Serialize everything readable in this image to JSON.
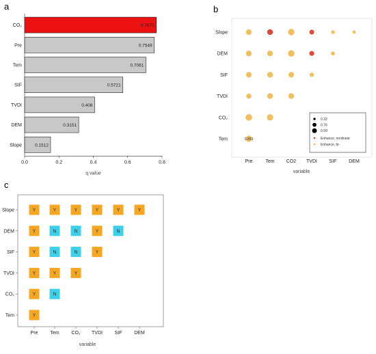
{
  "panels": {
    "a": "a",
    "b": "b",
    "c": "c"
  },
  "chart_data": [
    {
      "panel": "a",
      "type": "bar",
      "orientation": "horizontal",
      "categories": [
        "CO₂",
        "Pre",
        "Tem",
        "SIF",
        "TVDI",
        "DEM",
        "Slope"
      ],
      "values": [
        0.7671,
        0.7549,
        0.7061,
        0.5721,
        0.408,
        0.3151,
        0.1512
      ],
      "value_labels": [
        "0.7671",
        "0.7549",
        "0.7061",
        "0.5721",
        "0.408",
        "0.3151",
        "0.1512"
      ],
      "bar_colors": [
        "#ee1111",
        "#c8c8c8",
        "#c8c8c8",
        "#c8c8c8",
        "#c8c8c8",
        "#c8c8c8",
        "#c8c8c8"
      ],
      "xlabel": "q value",
      "xlim": [
        0,
        0.8
      ],
      "xticks": [
        "0.0",
        "0.2",
        "0.4",
        "0.6",
        "0.8"
      ]
    },
    {
      "panel": "b",
      "type": "scatter",
      "x_categories": [
        "Pre",
        "Tem",
        "CO2",
        "TVDI",
        "SIF",
        "DEM"
      ],
      "y_categories": [
        "Tem",
        "CO₂",
        "TVDI",
        "SIF",
        "DEM",
        "Slope"
      ],
      "xlabel": "variable",
      "points": [
        {
          "x": "Pre",
          "y": "Slope",
          "type": "bi",
          "size": 0.78
        },
        {
          "x": "Tem",
          "y": "Slope",
          "type": "nonlinear",
          "size": 0.78
        },
        {
          "x": "CO2",
          "y": "Slope",
          "type": "bi",
          "size": 0.92
        },
        {
          "x": "TVDI",
          "y": "Slope",
          "type": "nonlinear",
          "size": 0.6
        },
        {
          "x": "SIF",
          "y": "Slope",
          "type": "bi",
          "size": 0.4
        },
        {
          "x": "DEM",
          "y": "Slope",
          "type": "bi",
          "size": 0.32
        },
        {
          "x": "Pre",
          "y": "DEM",
          "type": "bi",
          "size": 0.78
        },
        {
          "x": "Tem",
          "y": "DEM",
          "type": "bi",
          "size": 0.76
        },
        {
          "x": "CO2",
          "y": "DEM",
          "type": "bi",
          "size": 0.92
        },
        {
          "x": "TVDI",
          "y": "DEM",
          "type": "nonlinear",
          "size": 0.62
        },
        {
          "x": "SIF",
          "y": "DEM",
          "type": "bi",
          "size": 0.45
        },
        {
          "x": "Pre",
          "y": "SIF",
          "type": "bi",
          "size": 0.76
        },
        {
          "x": "Tem",
          "y": "SIF",
          "type": "bi",
          "size": 0.78
        },
        {
          "x": "CO2",
          "y": "SIF",
          "type": "bi",
          "size": 0.76
        },
        {
          "x": "TVDI",
          "y": "SIF",
          "type": "bi",
          "size": 0.52
        },
        {
          "x": "Pre",
          "y": "TVDI",
          "type": "bi",
          "size": 0.66
        },
        {
          "x": "Tem",
          "y": "TVDI",
          "type": "bi",
          "size": 0.78
        },
        {
          "x": "CO2",
          "y": "TVDI",
          "type": "bi",
          "size": 0.78
        },
        {
          "x": "Pre",
          "y": "CO₂",
          "type": "bi",
          "size": 0.95
        },
        {
          "x": "Tem",
          "y": "CO₂",
          "type": "bi",
          "size": 0.9
        },
        {
          "x": "Pre",
          "y": "Tem",
          "type": "bi",
          "size": 0.9
        }
      ],
      "annotation": {
        "x": "Pre",
        "y": "Tem",
        "text": "0.853"
      },
      "size_legend": [
        "0.32",
        "0.76",
        "0.99"
      ],
      "type_legend": [
        {
          "label": "Enhance, nonlinear",
          "color": "#e0483a"
        },
        {
          "label": "Enhance, bi-",
          "color": "#f0c060"
        }
      ],
      "colors": {
        "bi": "#f0c060",
        "nonlinear": "#e0483a"
      },
      "legend_position": "bottom-right"
    },
    {
      "panel": "c",
      "type": "heatmap",
      "x_categories": [
        "Pre",
        "Tem",
        "CO₂",
        "TVDI",
        "SIF",
        "DEM"
      ],
      "y_categories": [
        "Tem",
        "CO₂",
        "TVDI",
        "SIF",
        "DEM",
        "Slope"
      ],
      "xlabel": "variable",
      "cells": [
        {
          "x": "Pre",
          "y": "Slope",
          "v": "Y"
        },
        {
          "x": "Tem",
          "y": "Slope",
          "v": "Y"
        },
        {
          "x": "CO₂",
          "y": "Slope",
          "v": "Y"
        },
        {
          "x": "TVDI",
          "y": "Slope",
          "v": "Y"
        },
        {
          "x": "SIF",
          "y": "Slope",
          "v": "Y"
        },
        {
          "x": "DEM",
          "y": "Slope",
          "v": "Y"
        },
        {
          "x": "Pre",
          "y": "DEM",
          "v": "Y"
        },
        {
          "x": "Tem",
          "y": "DEM",
          "v": "N"
        },
        {
          "x": "CO₂",
          "y": "DEM",
          "v": "N"
        },
        {
          "x": "TVDI",
          "y": "DEM",
          "v": "Y"
        },
        {
          "x": "SIF",
          "y": "DEM",
          "v": "N"
        },
        {
          "x": "Pre",
          "y": "SIF",
          "v": "Y"
        },
        {
          "x": "Tem",
          "y": "SIF",
          "v": "N"
        },
        {
          "x": "CO₂",
          "y": "SIF",
          "v": "N"
        },
        {
          "x": "TVDI",
          "y": "SIF",
          "v": "Y"
        },
        {
          "x": "Pre",
          "y": "TVDI",
          "v": "Y"
        },
        {
          "x": "Tem",
          "y": "TVDI",
          "v": "Y"
        },
        {
          "x": "CO₂",
          "y": "TVDI",
          "v": "Y"
        },
        {
          "x": "Pre",
          "y": "CO₂",
          "v": "Y"
        },
        {
          "x": "Tem",
          "y": "CO₂",
          "v": "N"
        },
        {
          "x": "Pre",
          "y": "Tem",
          "v": "Y"
        }
      ],
      "colors": {
        "Y": "#f5a623",
        "N": "#3dd0e8"
      }
    }
  ]
}
